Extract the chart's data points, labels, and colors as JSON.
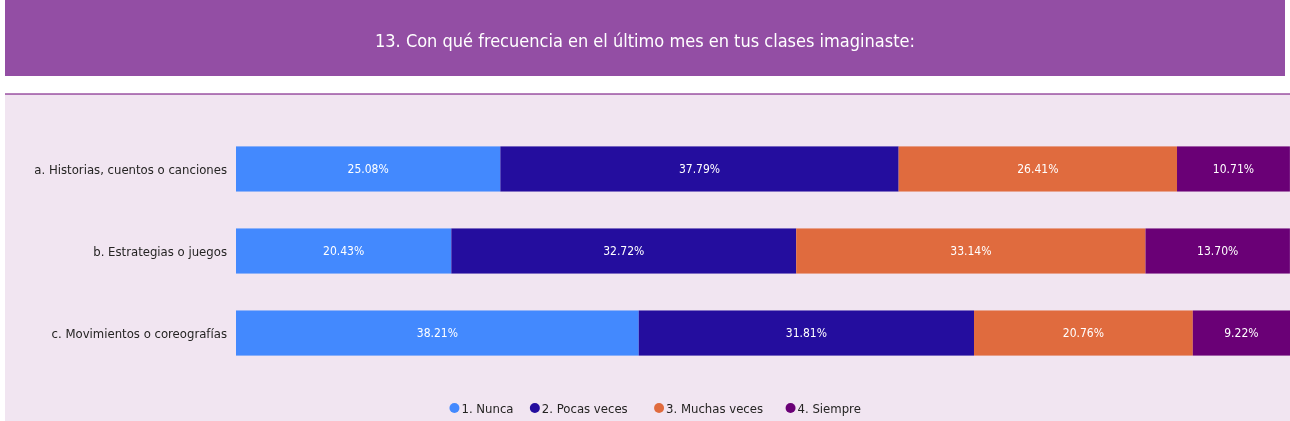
{
  "chart_data": {
    "type": "bar",
    "orientation": "horizontal",
    "stacked": true,
    "title": "13. Con qué frecuencia en el último mes en tus clases imaginaste:",
    "categories": [
      "a. Historias, cuentos o canciones",
      "b. Estrategias o juegos",
      "c. Movimientos o coreografías"
    ],
    "series": [
      {
        "name": "1. Nunca",
        "color": "#4389fe",
        "values": [
          25.08,
          20.43,
          38.21
        ],
        "value_labels": [
          "25.08%",
          "20.43%",
          "38.21%"
        ]
      },
      {
        "name": "2. Pocas veces",
        "color": "#240d9e",
        "values": [
          37.79,
          32.72,
          31.81
        ],
        "value_labels": [
          "37.79%",
          "32.72%",
          "31.81%"
        ]
      },
      {
        "name": "3. Muchas veces",
        "color": "#e06b3e",
        "values": [
          26.41,
          33.14,
          20.76
        ],
        "value_labels": [
          "26.41%",
          "33.14%",
          "20.76%"
        ]
      },
      {
        "name": "4. Siempre",
        "color": "#6a0076",
        "values": [
          10.71,
          13.7,
          9.22
        ],
        "value_labels": [
          "10.71%",
          "13.70%",
          "9.22%"
        ]
      }
    ],
    "legend": "bottom"
  }
}
